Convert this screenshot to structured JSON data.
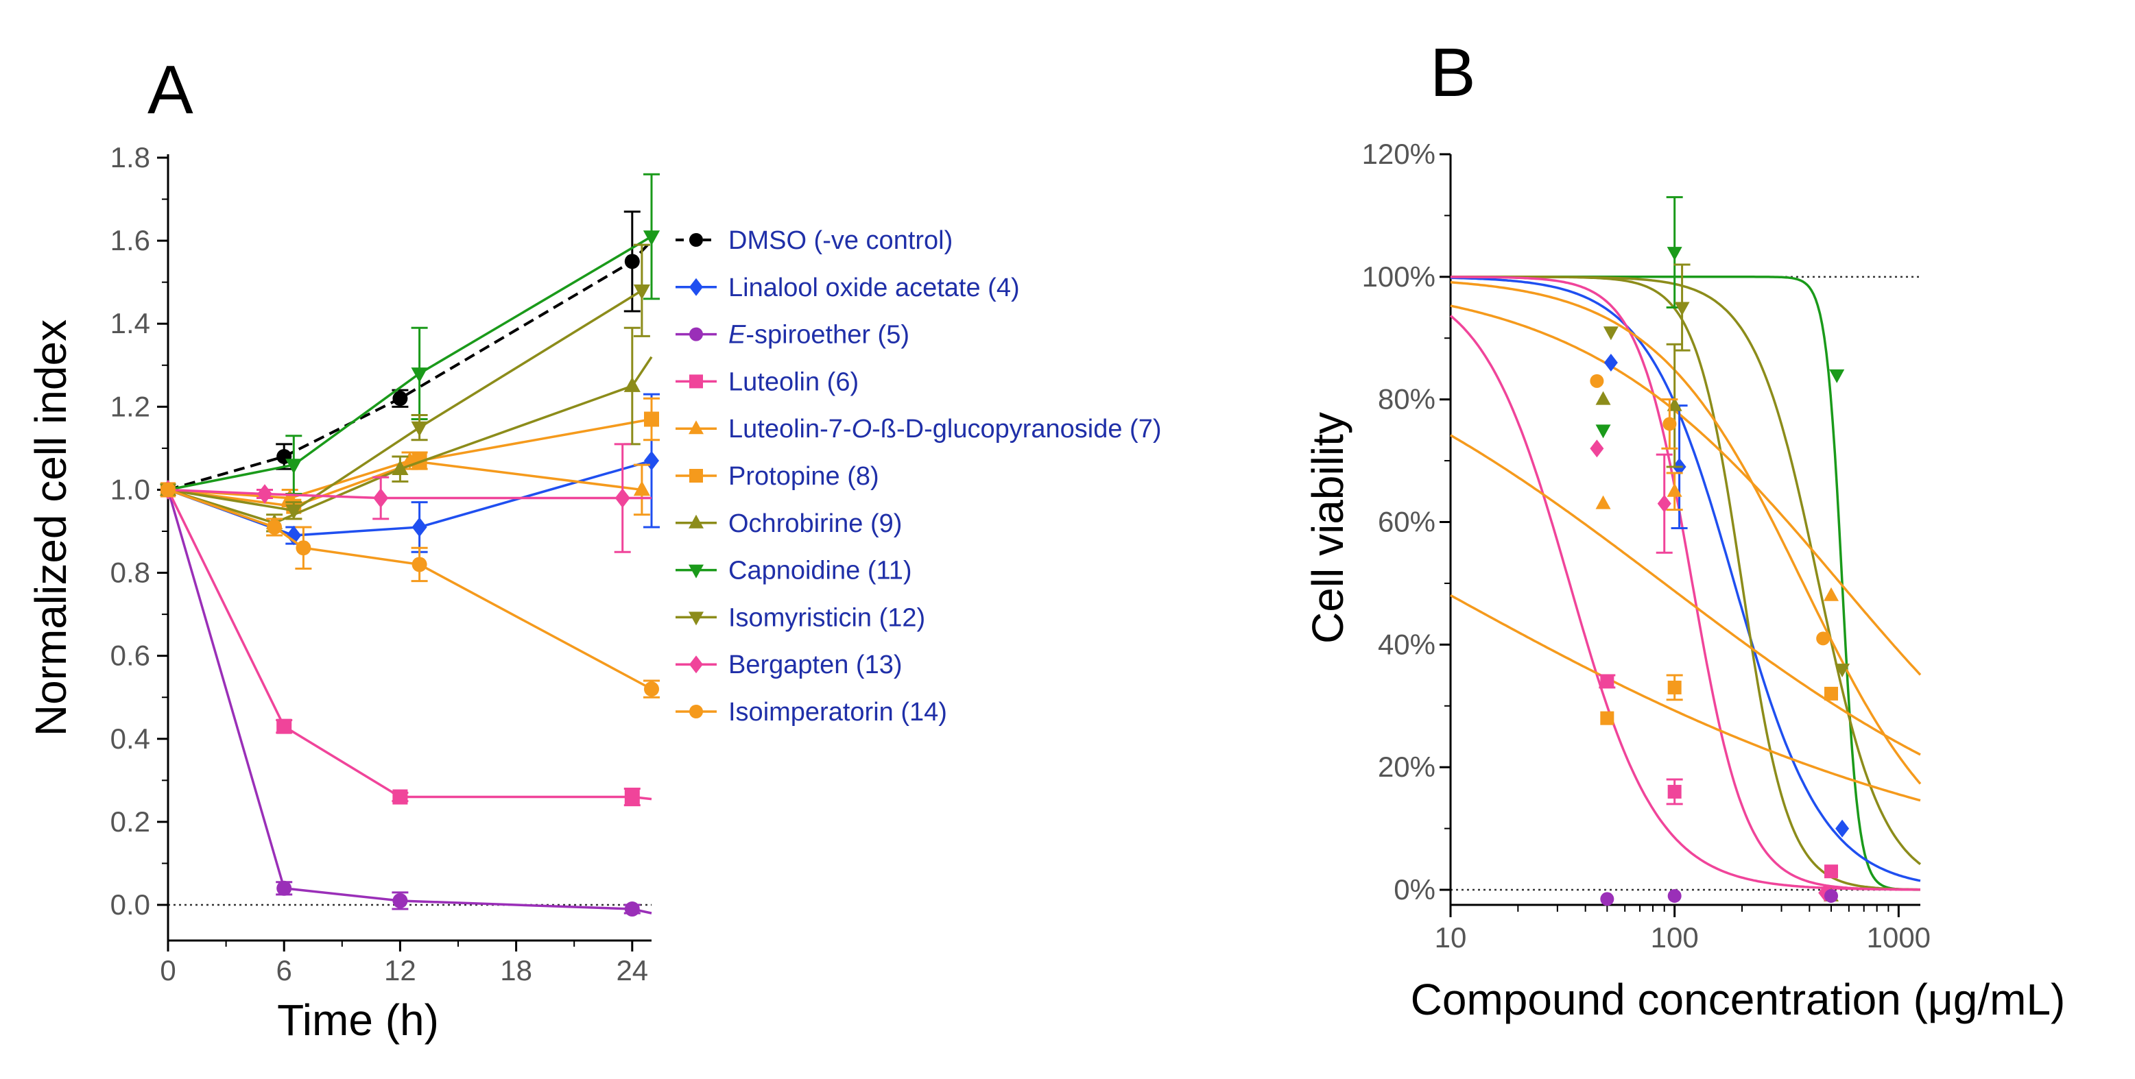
{
  "panels": {
    "a": "A",
    "b": "B"
  },
  "chart_data": [
    {
      "type": "line",
      "panel": "A",
      "title": "",
      "xlabel": "Time (h)",
      "ylabel": "Normalized cell index",
      "xlim": [
        0,
        25
      ],
      "ylim": [
        -0.05,
        1.8
      ],
      "xticks": [
        "0",
        "6",
        "12",
        "18",
        "24"
      ],
      "yticks": [
        "0.0",
        "0.2",
        "0.4",
        "0.6",
        "0.8",
        "1.0",
        "1.2",
        "1.4",
        "1.6",
        "1.8"
      ],
      "reference_line": 0,
      "legend_position": "right",
      "series": [
        {
          "name": "DMSO (-ve control)",
          "color": "#000000",
          "marker": "circle",
          "dashed": true,
          "points": [
            [
              0,
              1.0,
              0
            ],
            [
              6,
              1.08,
              0.03
            ],
            [
              12,
              1.22,
              0.02
            ],
            [
              24,
              1.55,
              0.12
            ]
          ],
          "line_to": [
            25,
            1.6
          ]
        },
        {
          "name": "Linalool oxide acetate (4)",
          "color": "#1f4ff0",
          "marker": "diamond",
          "points": [
            [
              0,
              1.0,
              0
            ],
            [
              6.5,
              0.89,
              0.02
            ],
            [
              13,
              0.91,
              0.06
            ],
            [
              25,
              1.07,
              0.16
            ]
          ]
        },
        {
          "name": "E-spiroether (5)",
          "name_prefix": "E",
          "name_rest": "-spiroether (5)",
          "color": "#9a2fb8",
          "marker": "circle",
          "points": [
            [
              0,
              1.0,
              0
            ],
            [
              6,
              0.04,
              0.015
            ],
            [
              12,
              0.01,
              0.02
            ],
            [
              24,
              -0.01,
              0.01
            ]
          ],
          "line_to": [
            25,
            -0.02
          ]
        },
        {
          "name": "Luteolin (6)",
          "color": "#f0449a",
          "marker": "square",
          "points": [
            [
              0,
              1.0,
              0
            ],
            [
              6,
              0.43,
              0.015
            ],
            [
              12,
              0.26,
              0.01
            ],
            [
              24,
              0.26,
              0.02
            ]
          ],
          "line_to": [
            25,
            0.255
          ]
        },
        {
          "name": "Luteolin-7-O-ß-D-glucopyranoside (7)",
          "name_prefix": "Luteolin-7-",
          "name_italic": "O",
          "name_rest": "-ß-D-glucopyranoside (7)",
          "color": "#f59a1c",
          "marker": "triangle-up",
          "points": [
            [
              0,
              1.0,
              0
            ],
            [
              6.3,
              0.98,
              0.02
            ],
            [
              12.5,
              1.07,
              0.02
            ],
            [
              24.5,
              1.0,
              0.06
            ]
          ]
        },
        {
          "name": "Protopine (8)",
          "color": "#f59a1c",
          "marker": "square",
          "points": [
            [
              0,
              1.0,
              0
            ],
            [
              6.5,
              0.96,
              0.03
            ],
            [
              13,
              1.07,
              0.02
            ],
            [
              25,
              1.17,
              0.05
            ]
          ]
        },
        {
          "name": "Ochrobirine (9)",
          "color": "#8c8c1a",
          "marker": "triangle-up",
          "points": [
            [
              0,
              1.0,
              0
            ],
            [
              5.5,
              0.92,
              0.02
            ],
            [
              12,
              1.05,
              0.03
            ],
            [
              24,
              1.25,
              0.14
            ]
          ],
          "line_to": [
            25,
            1.32
          ]
        },
        {
          "name": "Capnoidine (11)",
          "color": "#1a9a1a",
          "marker": "triangle-down",
          "points": [
            [
              0,
              1.0,
              0
            ],
            [
              6.5,
              1.06,
              0.07
            ],
            [
              13,
              1.28,
              0.11
            ],
            [
              25,
              1.61,
              0.15
            ]
          ]
        },
        {
          "name": "Isomyristicin (12)",
          "color": "#8c8c1a",
          "marker": "triangle-down",
          "points": [
            [
              0,
              1.0,
              0
            ],
            [
              6.5,
              0.95,
              0.02
            ],
            [
              13,
              1.15,
              0.03
            ],
            [
              24.5,
              1.48,
              0.11
            ]
          ]
        },
        {
          "name": "Bergapten (13)",
          "color": "#f0449a",
          "marker": "diamond",
          "points": [
            [
              0,
              1.0,
              0
            ],
            [
              5,
              0.99,
              0.01
            ],
            [
              11,
              0.98,
              0.05
            ],
            [
              23.5,
              0.98,
              0.13
            ]
          ],
          "line_to": [
            25,
            0.98
          ]
        },
        {
          "name": "Isoimperatorin (14)",
          "color": "#f59a1c",
          "marker": "circle",
          "points": [
            [
              0,
              1.0,
              0
            ],
            [
              5.5,
              0.91,
              0.02
            ],
            [
              7,
              0.86,
              0.05
            ],
            [
              13,
              0.82,
              0.04
            ],
            [
              25,
              0.52,
              0.02
            ]
          ]
        }
      ]
    },
    {
      "type": "scatter",
      "panel": "B",
      "title": "",
      "xlabel": "Compound concentration (μg/mL)",
      "ylabel": "Cell viability",
      "xscale": "log",
      "xlim": [
        10,
        1250
      ],
      "ylim": [
        -2,
        120
      ],
      "xticks": [
        "10",
        "100",
        "1000"
      ],
      "yticks": [
        "0%",
        "20%",
        "40%",
        "60%",
        "80%",
        "100%",
        "120%"
      ],
      "reference_lines": [
        0,
        100
      ],
      "curves": [
        {
          "color": "#1a9a1a",
          "top": 100,
          "bottom": 0,
          "ic50": 560,
          "hill": 12
        },
        {
          "color": "#1f4ff0",
          "top": 100,
          "bottom": 0,
          "ic50": 185,
          "hill": 2.2
        },
        {
          "color": "#8c8c1a",
          "top": 100,
          "bottom": 0,
          "ic50": 200,
          "hill": 4.2
        },
        {
          "color": "#8c8c1a",
          "top": 100,
          "bottom": 0,
          "ic50": 440,
          "hill": 3.0
        },
        {
          "color": "#f0449a",
          "top": 100,
          "bottom": 0,
          "ic50": 120,
          "hill": 3.6
        },
        {
          "color": "#f0449a",
          "top": 100,
          "bottom": 0,
          "ic50": 34,
          "hill": 2.2
        },
        {
          "color": "#f59a1c",
          "top": 100,
          "bottom": 0,
          "ic50": 375,
          "hill": 1.3
        },
        {
          "color": "#f59a1c",
          "top": 100,
          "bottom": 0,
          "ic50": 550,
          "hill": 0.75
        },
        {
          "color": "#f59a1c",
          "top": 100,
          "bottom": 0,
          "ic50": 90,
          "hill": 0.48
        },
        {
          "color": "#f59a1c",
          "top": 100,
          "bottom": 0,
          "ic50": 8,
          "hill": 0.35
        }
      ],
      "points": [
        {
          "x": 52,
          "y": 86,
          "err": 0,
          "marker": "diamond",
          "color": "#1f4ff0"
        },
        {
          "x": 105,
          "y": 69,
          "err": 10,
          "marker": "diamond",
          "color": "#1f4ff0"
        },
        {
          "x": 560,
          "y": 10,
          "err": 0,
          "marker": "diamond",
          "color": "#1f4ff0"
        },
        {
          "x": 100,
          "y": 104,
          "err": 9,
          "marker": "triangle-down",
          "color": "#1a9a1a"
        },
        {
          "x": 530,
          "y": 84,
          "err": 0,
          "marker": "triangle-down",
          "color": "#1a9a1a"
        },
        {
          "x": 48,
          "y": 75,
          "err": 0,
          "marker": "triangle-down",
          "color": "#1a9a1a"
        },
        {
          "x": 52,
          "y": 91,
          "err": 0,
          "marker": "triangle-down",
          "color": "#8c8c1a"
        },
        {
          "x": 108,
          "y": 95,
          "err": 7,
          "marker": "triangle-down",
          "color": "#8c8c1a"
        },
        {
          "x": 560,
          "y": 36,
          "err": 0,
          "marker": "triangle-down",
          "color": "#8c8c1a"
        },
        {
          "x": 48,
          "y": 80,
          "err": 0,
          "marker": "triangle-up",
          "color": "#8c8c1a"
        },
        {
          "x": 100,
          "y": 79,
          "err": 10,
          "marker": "triangle-up",
          "color": "#8c8c1a"
        },
        {
          "x": 500,
          "y": -1,
          "err": 0,
          "marker": "triangle-up",
          "color": "#8c8c1a"
        },
        {
          "x": 48,
          "y": 63,
          "err": 0,
          "marker": "triangle-up",
          "color": "#f59a1c"
        },
        {
          "x": 100,
          "y": 65,
          "err": 3,
          "marker": "triangle-up",
          "color": "#f59a1c"
        },
        {
          "x": 500,
          "y": 48,
          "err": 0,
          "marker": "triangle-up",
          "color": "#f59a1c"
        },
        {
          "x": 45,
          "y": 83,
          "err": 0,
          "marker": "circle",
          "color": "#f59a1c"
        },
        {
          "x": 95,
          "y": 76,
          "err": 4,
          "marker": "circle",
          "color": "#f59a1c"
        },
        {
          "x": 460,
          "y": 41,
          "err": 0,
          "marker": "circle",
          "color": "#f59a1c"
        },
        {
          "x": 50,
          "y": 28,
          "err": 0,
          "marker": "square",
          "color": "#f59a1c"
        },
        {
          "x": 100,
          "y": 33,
          "err": 2,
          "marker": "square",
          "color": "#f59a1c"
        },
        {
          "x": 500,
          "y": 32,
          "err": 0,
          "marker": "square",
          "color": "#f59a1c"
        },
        {
          "x": 50,
          "y": 34,
          "err": 1,
          "marker": "square",
          "color": "#f0449a"
        },
        {
          "x": 100,
          "y": 16,
          "err": 2,
          "marker": "square",
          "color": "#f0449a"
        },
        {
          "x": 500,
          "y": 3,
          "err": 0,
          "marker": "square",
          "color": "#f0449a"
        },
        {
          "x": 45,
          "y": 72,
          "err": 0,
          "marker": "diamond",
          "color": "#f0449a"
        },
        {
          "x": 90,
          "y": 63,
          "err": 8,
          "marker": "diamond",
          "color": "#f0449a"
        },
        {
          "x": 470,
          "y": -0.5,
          "err": 0,
          "marker": "diamond",
          "color": "#f0449a"
        },
        {
          "x": 50,
          "y": -1.5,
          "err": 0,
          "marker": "circle",
          "color": "#9a2fb8"
        },
        {
          "x": 100,
          "y": -1,
          "err": 0,
          "marker": "circle",
          "color": "#9a2fb8"
        },
        {
          "x": 500,
          "y": -1,
          "err": 0,
          "marker": "circle",
          "color": "#9a2fb8"
        }
      ]
    }
  ]
}
